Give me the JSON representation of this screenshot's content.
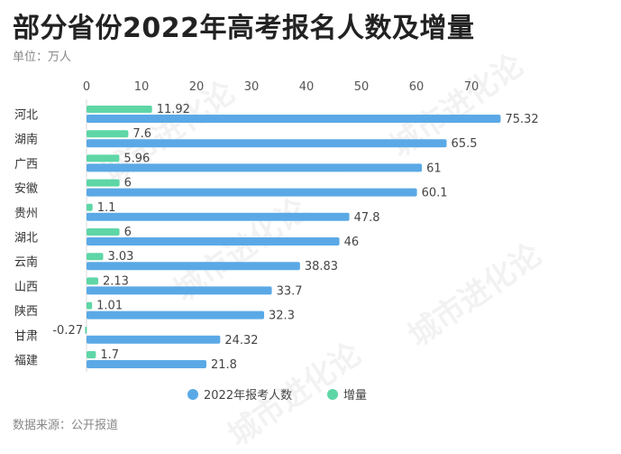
{
  "header": {
    "title": "部分省份2022年高考报名人数及增量",
    "unit": "单位：万人"
  },
  "footer": {
    "source": "数据来源：公开报道"
  },
  "watermark": {
    "text": "城市进化论"
  },
  "chart_data": {
    "type": "bar",
    "orientation": "horizontal",
    "categories": [
      "河北",
      "湖南",
      "广西",
      "安徽",
      "贵州",
      "湖北",
      "云南",
      "山西",
      "陕西",
      "甘肃",
      "福建"
    ],
    "series": [
      {
        "name": "2022年报考人数",
        "color": "#5aa9e6",
        "values": [
          75.32,
          65.5,
          61,
          60.1,
          47.8,
          46,
          38.83,
          33.7,
          32.3,
          24.32,
          21.8
        ],
        "labels": [
          "75.32",
          "65.5",
          "61",
          "60.1",
          "47.8",
          "46",
          "38.83",
          "33.7",
          "32.3",
          "24.32",
          "21.8"
        ]
      },
      {
        "name": "增量",
        "color": "#5ed6a6",
        "values": [
          11.92,
          7.6,
          5.96,
          6,
          1.1,
          6,
          3.03,
          2.13,
          1.01,
          -0.27,
          1.7
        ],
        "labels": [
          "11.92",
          "7.6",
          "5.96",
          "6",
          "1.1",
          "6",
          "3.03",
          "2.13",
          "1.01",
          "-0.27",
          "1.7"
        ]
      }
    ],
    "xticks": [
      0,
      10,
      20,
      30,
      40,
      50,
      60,
      70
    ],
    "xlim": [
      0,
      77
    ],
    "legend_position": "bottom"
  }
}
